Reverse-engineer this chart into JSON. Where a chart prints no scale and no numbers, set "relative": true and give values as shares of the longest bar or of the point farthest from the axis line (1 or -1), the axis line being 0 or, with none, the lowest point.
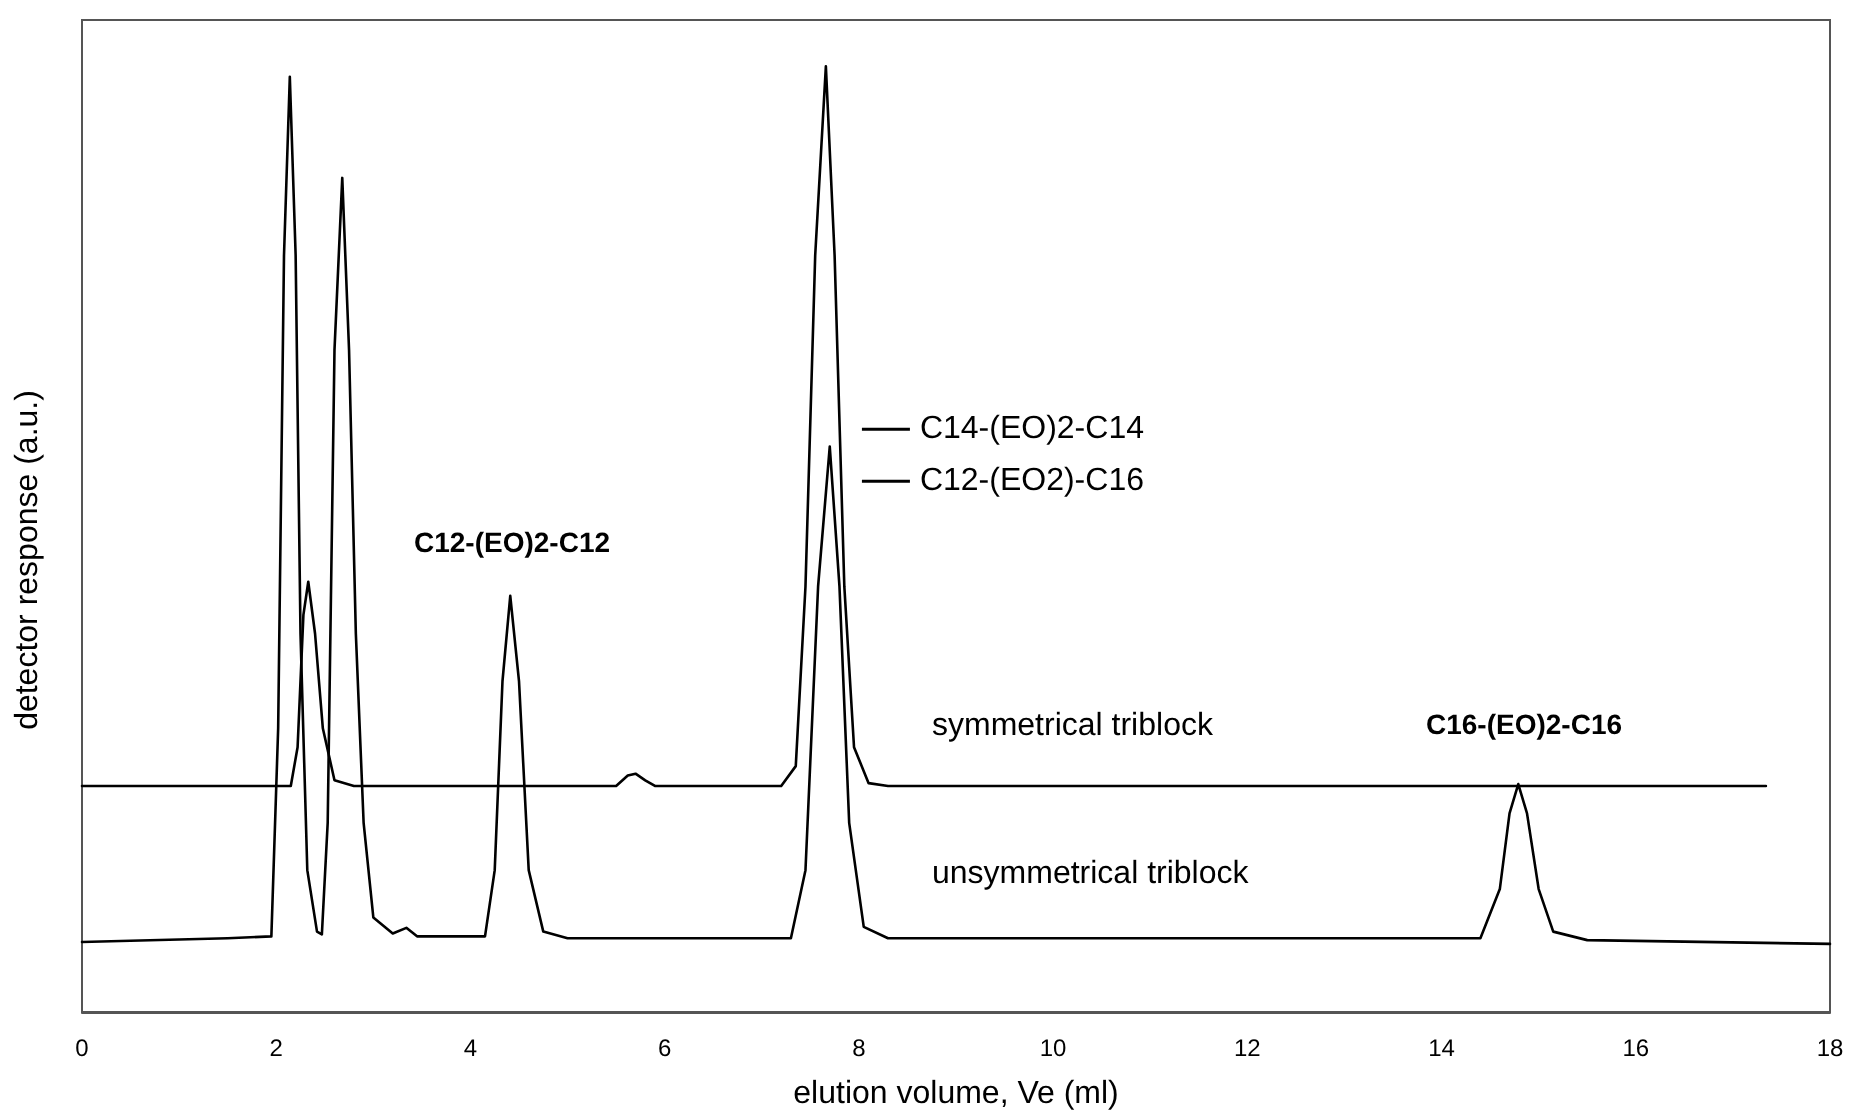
{
  "chart_data": {
    "type": "line",
    "relative": true,
    "xlabel": "elution volume, Ve (ml)",
    "ylabel": "detector response (a.u.)",
    "xlim": [
      0,
      18
    ],
    "xticks": [
      0,
      2,
      4,
      6,
      8,
      10,
      12,
      14,
      16,
      18
    ],
    "grid": false,
    "legend": "center",
    "marker": "none",
    "line_style": "solid",
    "series": [
      {
        "name": "C14-(EO)2-C14",
        "color": "#000000",
        "x": [
          0,
          2.15,
          2.22,
          2.28,
          2.33,
          2.4,
          2.48,
          2.6,
          2.8,
          5.5,
          5.62,
          5.7,
          5.8,
          5.9,
          7.2,
          7.35,
          7.45,
          7.55,
          7.66,
          7.75,
          7.85,
          7.95,
          8.1,
          8.3,
          17.34
        ],
        "values": [
          0.239,
          0.239,
          0.28,
          0.42,
          0.455,
          0.4,
          0.3,
          0.245,
          0.239,
          0.239,
          0.25,
          0.252,
          0.245,
          0.239,
          0.239,
          0.26,
          0.45,
          0.8,
          1,
          0.8,
          0.45,
          0.28,
          0.242,
          0.239,
          0.239
        ]
      },
      {
        "name": "C12-(EO2)-C16",
        "color": "#000000",
        "x": [
          0,
          1.5,
          1.95,
          2.02,
          2.08,
          2.14,
          2.2,
          2.25,
          2.32,
          2.42,
          2.47,
          2.53,
          2.6,
          2.68,
          2.75,
          2.82,
          2.9,
          3.0,
          3.2,
          3.34,
          3.45,
          4.15,
          4.25,
          4.33,
          4.41,
          4.5,
          4.6,
          4.75,
          5,
          7.3,
          7.45,
          7.58,
          7.7,
          7.8,
          7.9,
          8.05,
          8.3,
          14.4,
          14.6,
          14.7,
          14.79,
          14.88,
          15.0,
          15.15,
          15.5,
          18
        ],
        "values": [
          0.074,
          0.078,
          0.08,
          0.3,
          0.8,
          0.989,
          0.8,
          0.4,
          0.15,
          0.085,
          0.082,
          0.2,
          0.7,
          0.882,
          0.7,
          0.4,
          0.2,
          0.1,
          0.083,
          0.089,
          0.08,
          0.08,
          0.15,
          0.35,
          0.44,
          0.35,
          0.15,
          0.085,
          0.078,
          0.078,
          0.15,
          0.45,
          0.598,
          0.45,
          0.2,
          0.09,
          0.078,
          0.078,
          0.13,
          0.21,
          0.241,
          0.21,
          0.13,
          0.085,
          0.076,
          0.072
        ]
      }
    ],
    "annotations": [
      "C12-(EO)2-C12",
      "symmetrical triblock",
      "C16-(EO)2-C16",
      "unsymmetrical triblock"
    ]
  }
}
